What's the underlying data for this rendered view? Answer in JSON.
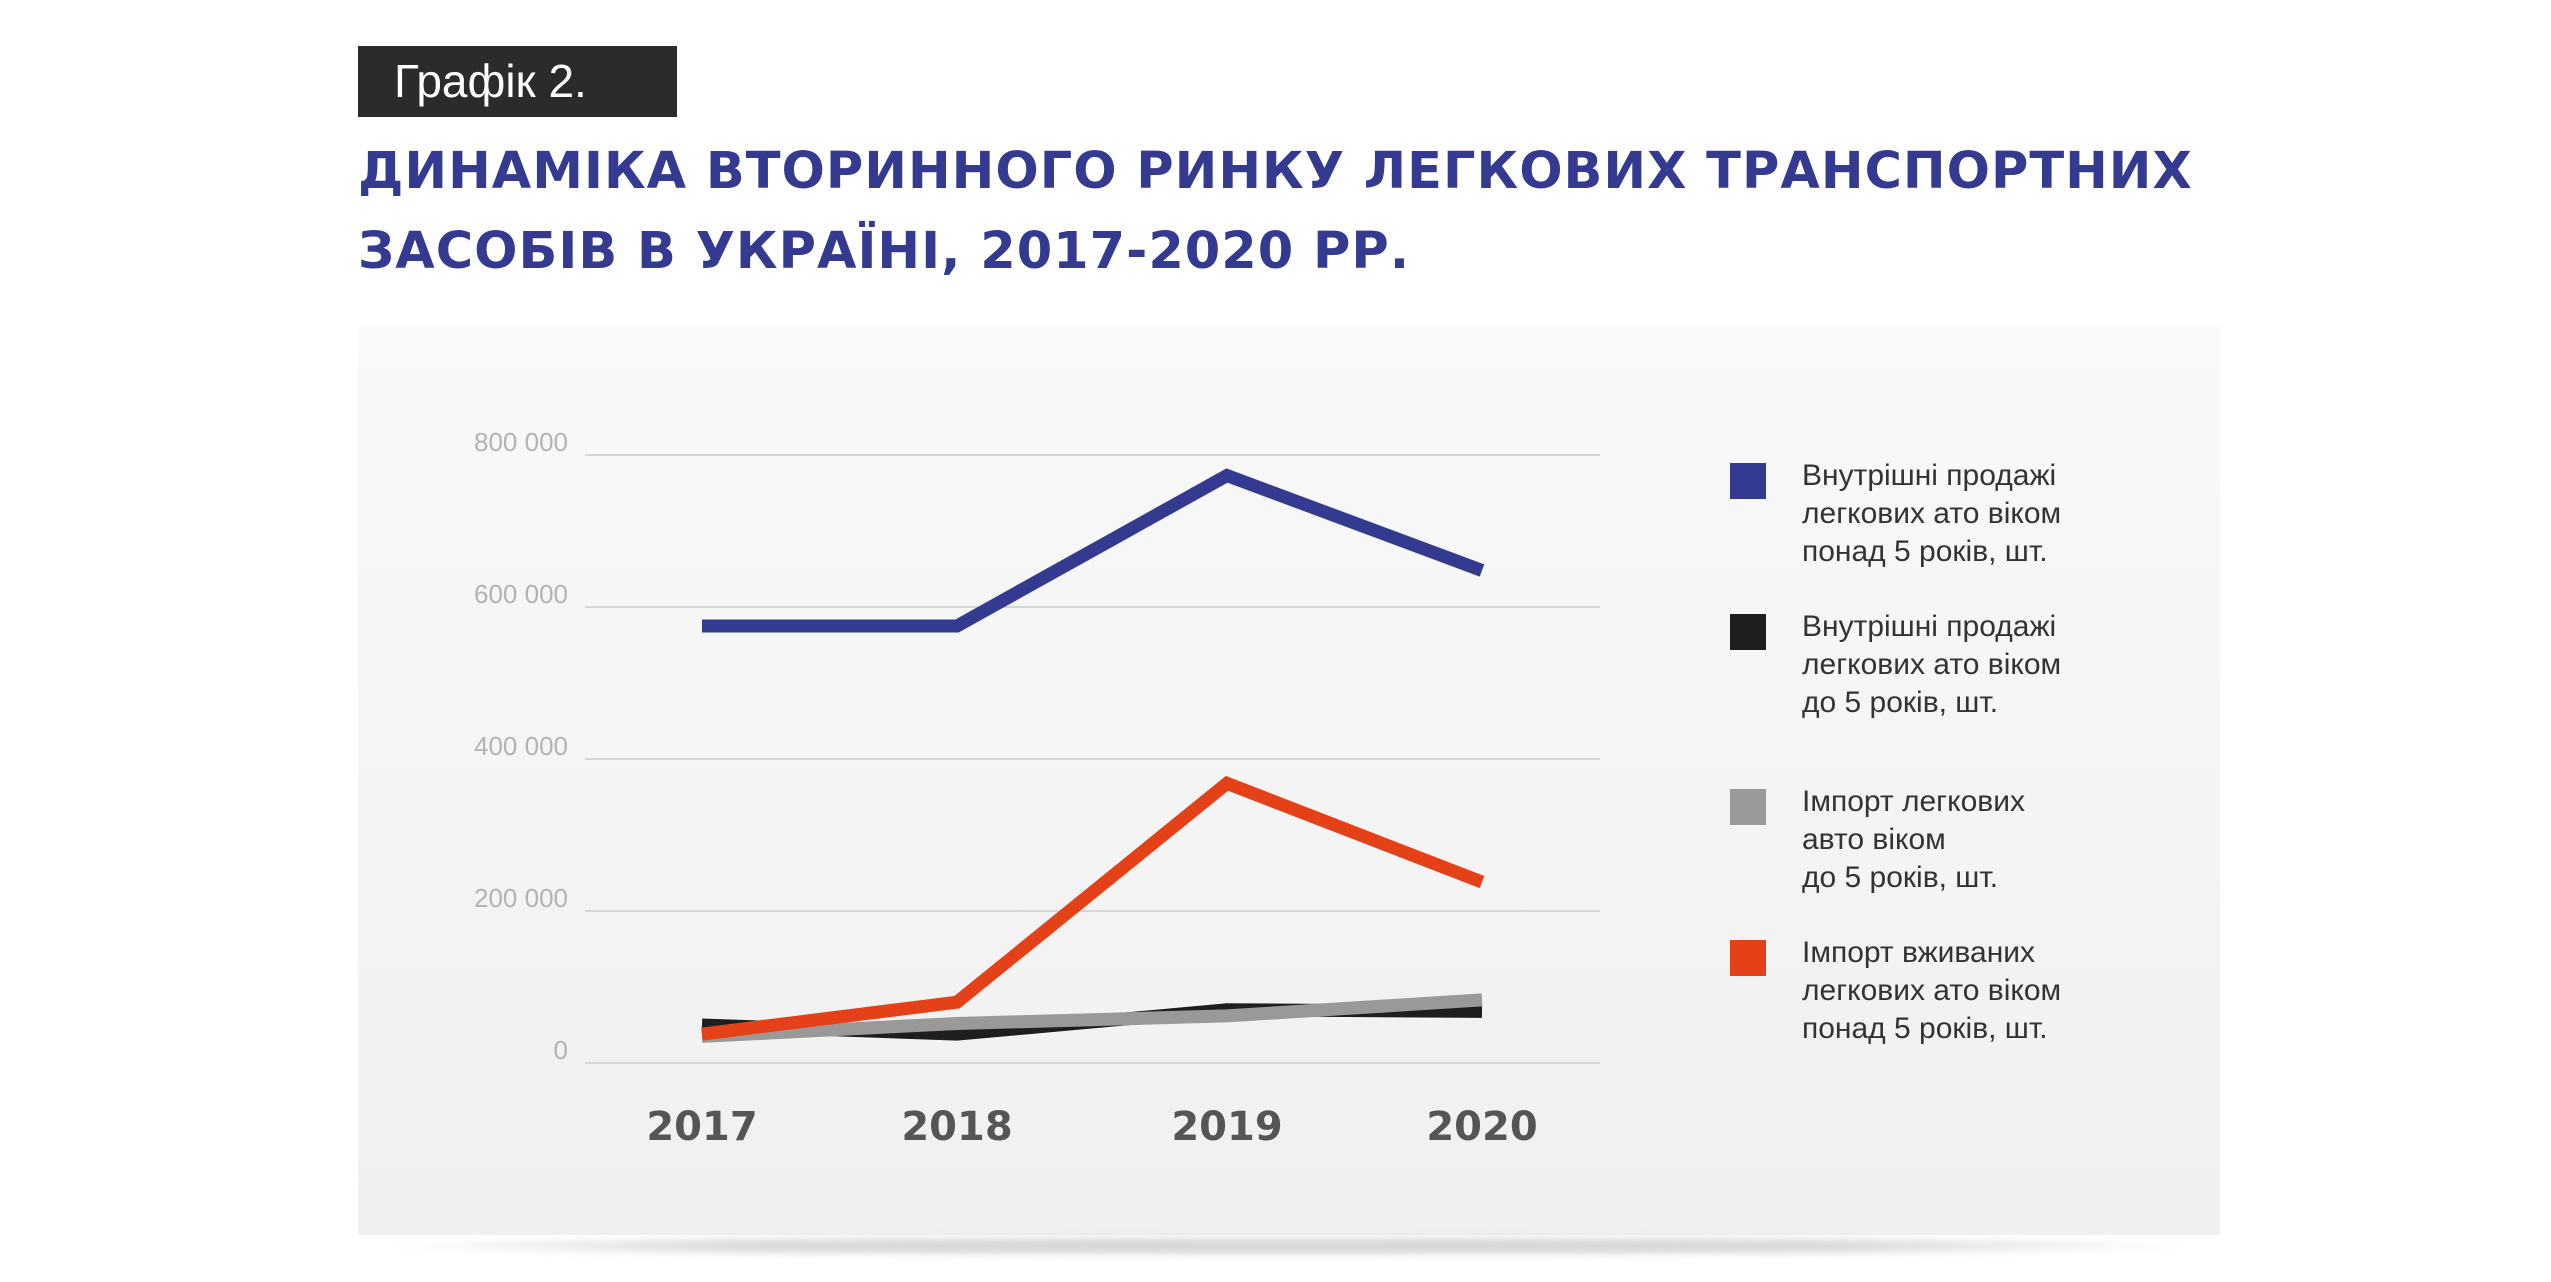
{
  "header": {
    "label": "Графік 2.",
    "title_lines": [
      "ДИНАМІКА ВТОРИННОГО РИНКУ ЛЕГКОВИХ ТРАНСПОРТНИХ",
      "ЗАСОБІВ В УКРАЇНІ, 2017-2020 РР."
    ]
  },
  "chart_data": {
    "type": "line",
    "title": "ДИНАМІКА ВТОРИННОГО РИНКУ ЛЕГКОВИХ ТРАНСПОРТНИХ ЗАСОБІВ В УКРАЇНІ, 2017-2020 РР.",
    "categories": [
      "2017",
      "2018",
      "2019",
      "2020"
    ],
    "y_ticks": [
      0,
      200000,
      400000,
      600000,
      800000
    ],
    "y_tick_labels": [
      "0",
      "200 000",
      "400 000",
      "600 000",
      "800 000"
    ],
    "ylim": [
      0,
      800000
    ],
    "grid": true,
    "legend_position": "right",
    "series": [
      {
        "name_lines": [
          "Внутрішні продажі",
          "легкових ато віком",
          "понад 5 років, шт."
        ],
        "color": "#333a8f",
        "values": [
          575000,
          575000,
          773000,
          648000
        ]
      },
      {
        "name_lines": [
          "Внутрішні продажі",
          "легкових ато віком",
          "до 5 років, шт."
        ],
        "color": "#1e1e1e",
        "values": [
          50000,
          38000,
          70000,
          68000
        ]
      },
      {
        "name_lines": [
          "Імпорт легкових",
          "авто віком",
          "до 5 років, шт."
        ],
        "color": "#9b9898",
        "values": [
          35000,
          52000,
          62000,
          83000
        ]
      },
      {
        "name_lines": [
          "Імпорт вживаних",
          "легкових ато віком",
          "понад 5 років, шт."
        ],
        "color": "#e54118",
        "values": [
          38000,
          80000,
          368000,
          238000
        ]
      }
    ]
  }
}
